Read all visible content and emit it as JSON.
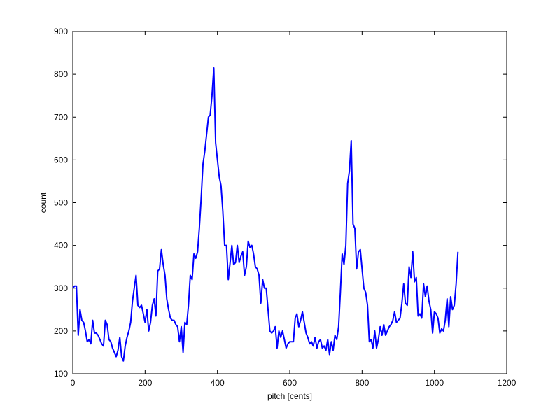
{
  "chart_data": {
    "type": "line",
    "xlabel": "pitch [cents]",
    "ylabel": "count",
    "xlim": [
      0,
      1200
    ],
    "ylim": [
      100,
      900
    ],
    "xticks": [
      0,
      200,
      400,
      600,
      800,
      1000,
      1200
    ],
    "yticks": [
      100,
      200,
      300,
      400,
      500,
      600,
      700,
      800,
      900
    ],
    "grid": false,
    "line_color": "#0000ff",
    "series": [
      {
        "values": [
          [
            0,
            300
          ],
          [
            5,
            305
          ],
          [
            10,
            305
          ],
          [
            15,
            190
          ],
          [
            20,
            250
          ],
          [
            25,
            225
          ],
          [
            30,
            220
          ],
          [
            35,
            200
          ],
          [
            40,
            175
          ],
          [
            45,
            180
          ],
          [
            50,
            170
          ],
          [
            55,
            225
          ],
          [
            60,
            195
          ],
          [
            65,
            195
          ],
          [
            70,
            190
          ],
          [
            75,
            180
          ],
          [
            80,
            170
          ],
          [
            85,
            165
          ],
          [
            90,
            225
          ],
          [
            95,
            215
          ],
          [
            100,
            180
          ],
          [
            105,
            175
          ],
          [
            110,
            160
          ],
          [
            115,
            150
          ],
          [
            120,
            140
          ],
          [
            125,
            155
          ],
          [
            130,
            185
          ],
          [
            135,
            140
          ],
          [
            140,
            130
          ],
          [
            145,
            165
          ],
          [
            150,
            185
          ],
          [
            155,
            200
          ],
          [
            160,
            220
          ],
          [
            165,
            270
          ],
          [
            170,
            300
          ],
          [
            175,
            330
          ],
          [
            180,
            260
          ],
          [
            185,
            255
          ],
          [
            190,
            260
          ],
          [
            195,
            240
          ],
          [
            200,
            220
          ],
          [
            205,
            250
          ],
          [
            210,
            200
          ],
          [
            215,
            220
          ],
          [
            220,
            260
          ],
          [
            225,
            275
          ],
          [
            230,
            235
          ],
          [
            235,
            340
          ],
          [
            240,
            345
          ],
          [
            245,
            390
          ],
          [
            250,
            355
          ],
          [
            255,
            330
          ],
          [
            260,
            275
          ],
          [
            265,
            250
          ],
          [
            270,
            230
          ],
          [
            275,
            225
          ],
          [
            280,
            225
          ],
          [
            285,
            215
          ],
          [
            290,
            210
          ],
          [
            295,
            175
          ],
          [
            300,
            210
          ],
          [
            305,
            150
          ],
          [
            310,
            220
          ],
          [
            315,
            215
          ],
          [
            320,
            260
          ],
          [
            325,
            330
          ],
          [
            330,
            320
          ],
          [
            335,
            380
          ],
          [
            340,
            370
          ],
          [
            345,
            385
          ],
          [
            350,
            440
          ],
          [
            355,
            510
          ],
          [
            360,
            590
          ],
          [
            365,
            620
          ],
          [
            370,
            660
          ],
          [
            375,
            700
          ],
          [
            380,
            705
          ],
          [
            385,
            750
          ],
          [
            390,
            815
          ],
          [
            395,
            640
          ],
          [
            400,
            600
          ],
          [
            405,
            560
          ],
          [
            410,
            540
          ],
          [
            415,
            480
          ],
          [
            420,
            400
          ],
          [
            425,
            400
          ],
          [
            430,
            320
          ],
          [
            435,
            360
          ],
          [
            440,
            400
          ],
          [
            445,
            355
          ],
          [
            450,
            360
          ],
          [
            455,
            400
          ],
          [
            460,
            360
          ],
          [
            465,
            375
          ],
          [
            470,
            385
          ],
          [
            475,
            330
          ],
          [
            480,
            350
          ],
          [
            485,
            410
          ],
          [
            490,
            395
          ],
          [
            495,
            400
          ],
          [
            500,
            380
          ],
          [
            505,
            350
          ],
          [
            510,
            345
          ],
          [
            515,
            330
          ],
          [
            520,
            265
          ],
          [
            525,
            320
          ],
          [
            530,
            300
          ],
          [
            535,
            300
          ],
          [
            540,
            250
          ],
          [
            545,
            200
          ],
          [
            550,
            195
          ],
          [
            555,
            200
          ],
          [
            560,
            210
          ],
          [
            565,
            160
          ],
          [
            570,
            200
          ],
          [
            575,
            185
          ],
          [
            580,
            200
          ],
          [
            585,
            180
          ],
          [
            590,
            160
          ],
          [
            595,
            170
          ],
          [
            600,
            175
          ],
          [
            605,
            175
          ],
          [
            610,
            175
          ],
          [
            615,
            230
          ],
          [
            620,
            240
          ],
          [
            625,
            210
          ],
          [
            630,
            225
          ],
          [
            635,
            245
          ],
          [
            640,
            220
          ],
          [
            645,
            195
          ],
          [
            650,
            185
          ],
          [
            655,
            170
          ],
          [
            660,
            175
          ],
          [
            665,
            165
          ],
          [
            670,
            185
          ],
          [
            675,
            160
          ],
          [
            680,
            175
          ],
          [
            685,
            180
          ],
          [
            690,
            160
          ],
          [
            695,
            165
          ],
          [
            700,
            155
          ],
          [
            705,
            180
          ],
          [
            710,
            145
          ],
          [
            715,
            175
          ],
          [
            720,
            155
          ],
          [
            725,
            190
          ],
          [
            730,
            180
          ],
          [
            735,
            210
          ],
          [
            740,
            290
          ],
          [
            745,
            380
          ],
          [
            750,
            355
          ],
          [
            755,
            400
          ],
          [
            760,
            545
          ],
          [
            765,
            575
          ],
          [
            770,
            645
          ],
          [
            775,
            450
          ],
          [
            780,
            440
          ],
          [
            785,
            345
          ],
          [
            790,
            385
          ],
          [
            795,
            390
          ],
          [
            800,
            345
          ],
          [
            805,
            300
          ],
          [
            810,
            290
          ],
          [
            815,
            260
          ],
          [
            820,
            175
          ],
          [
            825,
            180
          ],
          [
            830,
            160
          ],
          [
            835,
            200
          ],
          [
            840,
            160
          ],
          [
            845,
            180
          ],
          [
            850,
            210
          ],
          [
            855,
            190
          ],
          [
            860,
            215
          ],
          [
            865,
            190
          ],
          [
            870,
            200
          ],
          [
            875,
            210
          ],
          [
            880,
            215
          ],
          [
            885,
            225
          ],
          [
            890,
            245
          ],
          [
            895,
            220
          ],
          [
            900,
            225
          ],
          [
            905,
            230
          ],
          [
            910,
            265
          ],
          [
            915,
            310
          ],
          [
            920,
            265
          ],
          [
            925,
            260
          ],
          [
            930,
            350
          ],
          [
            935,
            325
          ],
          [
            940,
            385
          ],
          [
            945,
            315
          ],
          [
            950,
            325
          ],
          [
            955,
            235
          ],
          [
            960,
            240
          ],
          [
            965,
            230
          ],
          [
            970,
            310
          ],
          [
            975,
            280
          ],
          [
            980,
            305
          ],
          [
            985,
            270
          ],
          [
            990,
            250
          ],
          [
            995,
            195
          ],
          [
            1000,
            245
          ],
          [
            1005,
            240
          ],
          [
            1010,
            230
          ],
          [
            1015,
            195
          ],
          [
            1020,
            205
          ],
          [
            1025,
            200
          ],
          [
            1030,
            225
          ],
          [
            1035,
            275
          ],
          [
            1040,
            210
          ],
          [
            1045,
            280
          ],
          [
            1050,
            250
          ],
          [
            1055,
            260
          ],
          [
            1060,
            310
          ],
          [
            1065,
            385
          ]
        ]
      }
    ]
  }
}
